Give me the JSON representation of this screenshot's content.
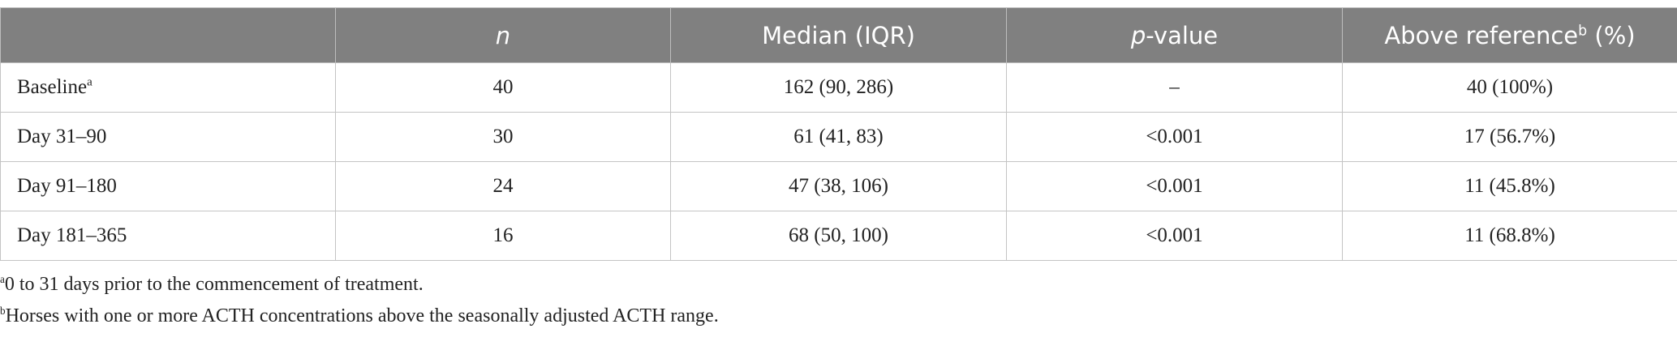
{
  "table": {
    "header": [
      {
        "italic": "n"
      },
      {
        "text": "Median (IQR)"
      },
      {
        "italic": "p",
        "text": "-value"
      },
      {
        "text": "Above reference",
        "sup": "b",
        "after": " (%)"
      }
    ],
    "rows": [
      {
        "label": "Baseline",
        "sup": "a",
        "cells": [
          "40",
          "162 (90, 286)",
          "–",
          "40 (100%)"
        ]
      },
      {
        "label": "Day 31–90",
        "cells": [
          "30",
          "61 (41, 83)",
          "<0.001",
          "17 (56.7%)"
        ]
      },
      {
        "label": "Day 91–180",
        "cells": [
          "24",
          "47 (38, 106)",
          "<0.001",
          "11 (45.8%)"
        ]
      },
      {
        "label": "Day 181–365",
        "cells": [
          "16",
          "68 (50, 100)",
          "<0.001",
          "11 (68.8%)"
        ]
      }
    ]
  },
  "footnotes": [
    {
      "sup": "a",
      "text": "0 to 31 days prior to the commencement of treatment."
    },
    {
      "sup": "b",
      "text": "Horses with one or more ACTH concentrations above the seasonally adjusted ACTH range."
    }
  ]
}
